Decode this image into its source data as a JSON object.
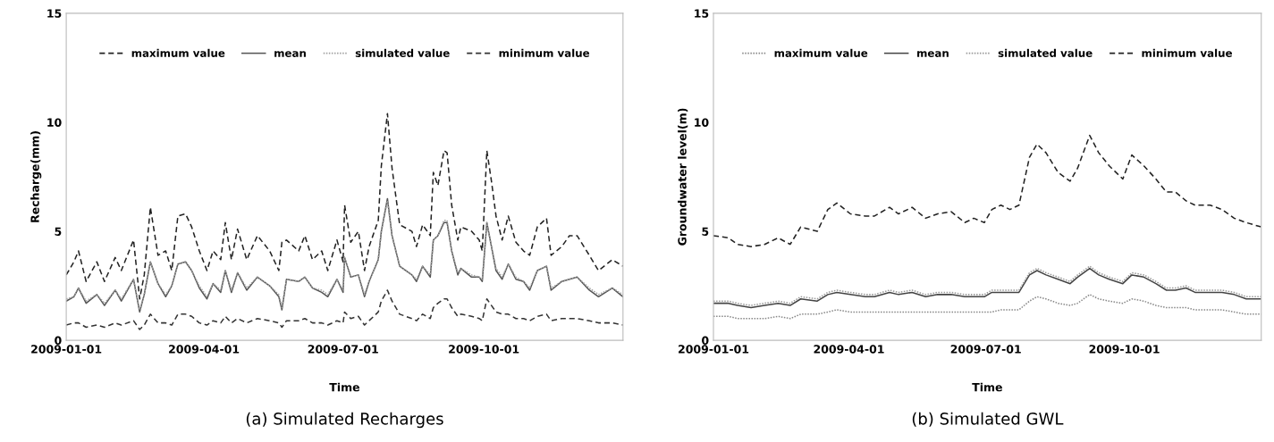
{
  "chart_data": [
    {
      "type": "line",
      "xlabel": "Time",
      "ylabel": "Recharge(mm)",
      "annotations": [
        "(a) Simulated Recharges"
      ],
      "x": [
        "2009-01-01",
        "2009-01-06",
        "2009-01-09",
        "2009-01-14",
        "2009-01-21",
        "2009-01-26",
        "2009-02-02",
        "2009-02-06",
        "2009-02-14",
        "2009-02-18",
        "2009-02-21",
        "2009-02-25",
        "2009-03-02",
        "2009-03-07",
        "2009-03-11",
        "2009-03-15",
        "2009-03-20",
        "2009-03-24",
        "2009-03-29",
        "2009-04-03",
        "2009-04-07",
        "2009-04-12",
        "2009-04-15",
        "2009-04-19",
        "2009-04-23",
        "2009-04-29",
        "2009-05-06",
        "2009-05-14",
        "2009-05-20",
        "2009-05-22",
        "2009-05-25",
        "2009-06-02",
        "2009-06-06",
        "2009-06-11",
        "2009-06-17",
        "2009-06-21",
        "2009-06-27",
        "2009-07-01",
        "2009-07-02",
        "2009-07-06",
        "2009-07-11",
        "2009-07-15",
        "2009-07-18",
        "2009-07-24",
        "2009-07-26",
        "2009-07-30",
        "2009-08-02",
        "2009-08-07",
        "2009-08-15",
        "2009-08-18",
        "2009-08-22",
        "2009-08-27",
        "2009-08-29",
        "2009-09-01",
        "2009-09-05",
        "2009-09-07",
        "2009-09-10",
        "2009-09-14",
        "2009-09-16",
        "2009-09-23",
        "2009-09-28",
        "2009-09-30",
        "2009-10-03",
        "2009-10-06",
        "2009-10-09",
        "2009-10-13",
        "2009-10-17",
        "2009-10-22",
        "2009-10-27",
        "2009-10-31",
        "2009-11-05",
        "2009-11-11",
        "2009-11-14",
        "2009-11-21",
        "2009-11-26",
        "2009-12-01",
        "2009-12-09",
        "2009-12-15",
        "2009-12-24",
        "2009-12-31"
      ],
      "series": [
        {
          "name": "maximum value",
          "color": "#222222",
          "line_style": "dashed",
          "values": [
            3.0,
            3.6,
            4.1,
            2.7,
            3.6,
            2.7,
            3.8,
            3.2,
            4.6,
            1.9,
            3.0,
            6.1,
            3.9,
            4.1,
            3.2,
            5.7,
            5.8,
            5.2,
            4.1,
            3.2,
            4.1,
            3.7,
            5.4,
            3.7,
            5.1,
            3.7,
            4.8,
            4.1,
            3.2,
            4.5,
            4.6,
            4.1,
            4.8,
            3.7,
            4.1,
            3.2,
            4.6,
            3.6,
            6.2,
            4.5,
            5.0,
            3.2,
            4.3,
            5.5,
            8.0,
            10.4,
            7.9,
            5.3,
            5.0,
            4.3,
            5.3,
            4.8,
            7.7,
            7.1,
            8.7,
            8.6,
            6.2,
            4.6,
            5.2,
            5.0,
            4.6,
            4.1,
            8.7,
            7.3,
            5.7,
            4.6,
            5.7,
            4.5,
            4.1,
            3.9,
            5.2,
            5.6,
            3.9,
            4.3,
            4.8,
            4.8,
            3.9,
            3.2,
            3.7,
            3.4
          ]
        },
        {
          "name": "mean",
          "color": "#555555",
          "line_style": "solid",
          "values": [
            1.8,
            2.0,
            2.4,
            1.7,
            2.1,
            1.6,
            2.3,
            1.8,
            2.8,
            1.3,
            2.1,
            3.6,
            2.6,
            2.0,
            2.5,
            3.5,
            3.6,
            3.2,
            2.4,
            1.9,
            2.6,
            2.2,
            3.2,
            2.2,
            3.1,
            2.3,
            2.9,
            2.5,
            2.0,
            1.4,
            2.8,
            2.7,
            2.9,
            2.4,
            2.2,
            2.0,
            2.8,
            2.2,
            3.8,
            2.9,
            3.0,
            2.0,
            2.7,
            3.7,
            5.0,
            6.5,
            4.8,
            3.4,
            3.0,
            2.7,
            3.4,
            2.9,
            4.6,
            4.8,
            5.4,
            5.4,
            4.1,
            3.0,
            3.3,
            2.9,
            2.9,
            2.7,
            5.4,
            4.3,
            3.2,
            2.8,
            3.5,
            2.8,
            2.7,
            2.3,
            3.2,
            3.4,
            2.3,
            2.7,
            2.8,
            2.9,
            2.3,
            2.0,
            2.4,
            2.0
          ]
        },
        {
          "name": "simulated value",
          "color": "#a0a0a0",
          "line_style": "dotted",
          "values": [
            1.9,
            2.0,
            2.4,
            1.8,
            2.1,
            1.7,
            2.3,
            1.9,
            2.8,
            1.4,
            2.1,
            3.6,
            2.6,
            2.1,
            2.5,
            3.5,
            3.6,
            3.2,
            2.5,
            2.0,
            2.6,
            2.3,
            3.2,
            2.3,
            3.1,
            2.4,
            2.9,
            2.5,
            2.1,
            1.5,
            2.8,
            2.7,
            2.9,
            2.4,
            2.3,
            2.1,
            2.8,
            2.3,
            3.8,
            2.9,
            3.0,
            2.1,
            2.7,
            3.7,
            5.0,
            6.4,
            4.8,
            3.4,
            3.0,
            2.8,
            3.4,
            3.0,
            4.6,
            4.8,
            5.5,
            5.5,
            4.1,
            3.1,
            3.3,
            3.0,
            2.9,
            2.8,
            5.4,
            4.3,
            3.3,
            2.9,
            3.5,
            2.9,
            2.7,
            2.4,
            3.2,
            3.4,
            2.4,
            2.7,
            2.8,
            2.9,
            2.4,
            2.1,
            2.4,
            2.1
          ]
        },
        {
          "name": "minimum value",
          "color": "#333333",
          "line_style": "dashed",
          "values": [
            0.7,
            0.8,
            0.8,
            0.6,
            0.7,
            0.6,
            0.8,
            0.7,
            0.9,
            0.5,
            0.7,
            1.2,
            0.8,
            0.8,
            0.7,
            1.2,
            1.2,
            1.1,
            0.8,
            0.7,
            0.9,
            0.8,
            1.1,
            0.8,
            1.0,
            0.8,
            1.0,
            0.9,
            0.8,
            0.6,
            0.9,
            0.9,
            1.0,
            0.8,
            0.8,
            0.7,
            0.9,
            0.8,
            1.3,
            1.0,
            1.1,
            0.7,
            0.9,
            1.3,
            1.8,
            2.3,
            1.8,
            1.2,
            1.0,
            0.9,
            1.2,
            1.0,
            1.5,
            1.7,
            1.9,
            1.9,
            1.5,
            1.1,
            1.2,
            1.1,
            1.0,
            0.9,
            1.9,
            1.6,
            1.3,
            1.2,
            1.2,
            1.0,
            1.0,
            0.9,
            1.1,
            1.2,
            0.9,
            1.0,
            1.0,
            1.0,
            0.9,
            0.8,
            0.8,
            0.7
          ]
        }
      ],
      "xlim": [
        "2009-01-01",
        "2009-12-31"
      ],
      "xticks": [
        "2009-01-01",
        "2009-04-01",
        "2009-07-01",
        "2009-10-01"
      ],
      "ylim": [
        0,
        15
      ],
      "yticks": [
        0,
        5,
        10,
        15
      ],
      "grid": false,
      "legend": "top",
      "marker": "none"
    },
    {
      "type": "line",
      "xlabel": "Time",
      "ylabel": "Groundwater level(m)",
      "annotations": [
        "(b) Simulated GWL"
      ],
      "x": [
        "2009-01-01",
        "2009-01-11",
        "2009-01-17",
        "2009-01-26",
        "2009-02-04",
        "2009-02-13",
        "2009-02-21",
        "2009-02-28",
        "2009-03-11",
        "2009-03-18",
        "2009-03-24",
        "2009-04-02",
        "2009-04-12",
        "2009-04-18",
        "2009-04-28",
        "2009-05-04",
        "2009-05-13",
        "2009-05-22",
        "2009-05-30",
        "2009-06-08",
        "2009-06-17",
        "2009-06-23",
        "2009-06-30",
        "2009-07-05",
        "2009-07-11",
        "2009-07-17",
        "2009-07-23",
        "2009-07-30",
        "2009-08-04",
        "2009-08-10",
        "2009-08-18",
        "2009-08-26",
        "2009-08-31",
        "2009-09-08",
        "2009-09-14",
        "2009-09-21",
        "2009-09-30",
        "2009-10-06",
        "2009-10-14",
        "2009-10-22",
        "2009-10-29",
        "2009-11-04",
        "2009-11-11",
        "2009-11-17",
        "2009-11-27",
        "2009-12-05",
        "2009-12-13",
        "2009-12-21",
        "2009-12-31"
      ],
      "series": [
        {
          "name": "maximum value",
          "color": "#888888",
          "line_style": "dotted",
          "values": [
            1.1,
            1.1,
            1.0,
            1.0,
            1.0,
            1.1,
            1.0,
            1.2,
            1.2,
            1.3,
            1.4,
            1.3,
            1.3,
            1.3,
            1.3,
            1.3,
            1.3,
            1.3,
            1.3,
            1.3,
            1.3,
            1.3,
            1.3,
            1.3,
            1.4,
            1.4,
            1.4,
            1.8,
            2.0,
            1.9,
            1.7,
            1.6,
            1.7,
            2.1,
            1.9,
            1.8,
            1.7,
            1.9,
            1.8,
            1.6,
            1.5,
            1.5,
            1.5,
            1.4,
            1.4,
            1.4,
            1.3,
            1.2,
            1.2
          ]
        },
        {
          "name": "mean",
          "color": "#444444",
          "line_style": "solid",
          "values": [
            1.7,
            1.7,
            1.6,
            1.5,
            1.6,
            1.7,
            1.6,
            1.9,
            1.8,
            2.1,
            2.2,
            2.1,
            2.0,
            2.0,
            2.2,
            2.1,
            2.2,
            2.0,
            2.1,
            2.1,
            2.0,
            2.0,
            2.0,
            2.2,
            2.2,
            2.2,
            2.2,
            3.0,
            3.2,
            3.0,
            2.8,
            2.6,
            2.9,
            3.3,
            3.0,
            2.8,
            2.6,
            3.0,
            2.9,
            2.6,
            2.3,
            2.3,
            2.4,
            2.2,
            2.2,
            2.2,
            2.1,
            1.9,
            1.9
          ]
        },
        {
          "name": "simulated value",
          "color": "#999999",
          "line_style": "dotted",
          "values": [
            1.8,
            1.8,
            1.7,
            1.6,
            1.7,
            1.8,
            1.7,
            2.0,
            1.9,
            2.2,
            2.3,
            2.2,
            2.1,
            2.1,
            2.3,
            2.2,
            2.3,
            2.1,
            2.2,
            2.2,
            2.1,
            2.1,
            2.1,
            2.3,
            2.3,
            2.3,
            2.3,
            3.1,
            3.3,
            3.1,
            2.9,
            2.7,
            3.0,
            3.4,
            3.1,
            2.9,
            2.7,
            3.1,
            3.0,
            2.7,
            2.4,
            2.4,
            2.5,
            2.3,
            2.3,
            2.3,
            2.2,
            2.0,
            2.0
          ]
        },
        {
          "name": "minimum value",
          "color": "#222222",
          "line_style": "dashed",
          "values": [
            4.8,
            4.7,
            4.4,
            4.3,
            4.4,
            4.7,
            4.4,
            5.2,
            5.0,
            6.0,
            6.3,
            5.8,
            5.7,
            5.7,
            6.1,
            5.8,
            6.1,
            5.6,
            5.8,
            5.9,
            5.4,
            5.6,
            5.4,
            6.0,
            6.2,
            6.0,
            6.2,
            8.4,
            9.0,
            8.6,
            7.7,
            7.3,
            7.9,
            9.4,
            8.6,
            8.0,
            7.4,
            8.5,
            8.0,
            7.4,
            6.8,
            6.8,
            6.4,
            6.2,
            6.2,
            6.0,
            5.6,
            5.4,
            5.2
          ]
        }
      ],
      "xlim": [
        "2009-01-01",
        "2009-12-31"
      ],
      "xticks": [
        "2009-01-01",
        "2009-04-01",
        "2009-07-01",
        "2009-10-01"
      ],
      "ylim": [
        0,
        15
      ],
      "yticks": [
        0,
        5,
        10,
        15
      ],
      "grid": false,
      "legend": "top",
      "marker": "none"
    }
  ]
}
